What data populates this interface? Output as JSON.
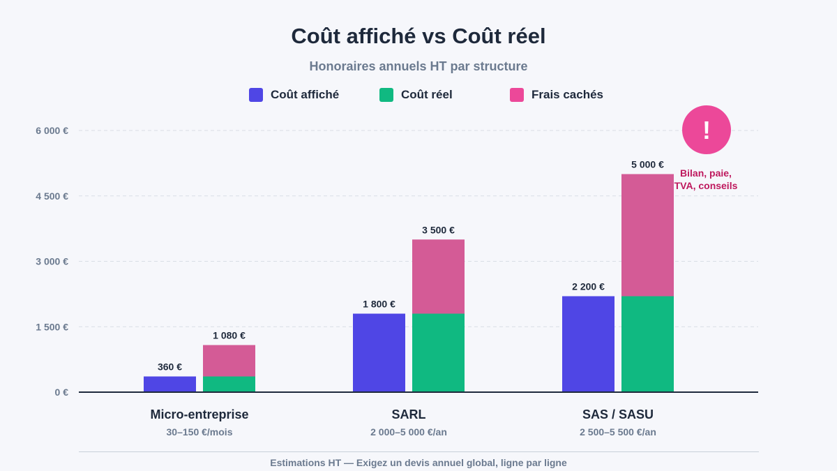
{
  "chart_data": {
    "type": "bar",
    "title": "Coût affiché vs Coût réel",
    "subtitle": "Honoraires annuels HT par structure",
    "categories": [
      "Micro-entreprise",
      "SARL",
      "SAS / SASU"
    ],
    "category_sublabels": [
      "30–150 €/mois",
      "2 000–5 000 €/an",
      "2 500–5 500 €/an"
    ],
    "series": [
      {
        "name": "Coût affiché",
        "color": "#4f46e5",
        "values": [
          360,
          1800,
          2200
        ]
      },
      {
        "name": "Coût réel",
        "color": "#10b981",
        "values": [
          360,
          1800,
          2200
        ]
      },
      {
        "name": "Frais cachés",
        "color": "#d45b96",
        "values": [
          720,
          1700,
          2800
        ]
      }
    ],
    "legend_colors": [
      "#4f46e5",
      "#10b981",
      "#ec4899"
    ],
    "stacked_series": [
      "Coût réel",
      "Frais cachés"
    ],
    "shown_labels": {
      "Coût affiché": [
        "360 €",
        "1 800 €",
        "2 200 €"
      ],
      "Coût réel": [
        "1 080 €",
        "3 500 €",
        "5 000 €"
      ]
    },
    "yticks": [
      0,
      1500,
      3000,
      4500,
      6000
    ],
    "ytick_labels": [
      "0 €",
      "1 500 €",
      "3 000 €",
      "4 500 €",
      "6 000 €"
    ],
    "ylim": [
      0,
      6000
    ],
    "grid": true,
    "legend_position": "top-center",
    "annotation": {
      "symbol": "!",
      "lines": [
        "Bilan, paie,",
        "TVA, conseils"
      ],
      "category": "SAS / SASU",
      "color": "#ec4899",
      "text_color": "#be185d"
    },
    "footer": "Estimations HT — Exigez un devis annuel global, ligne par ligne"
  }
}
